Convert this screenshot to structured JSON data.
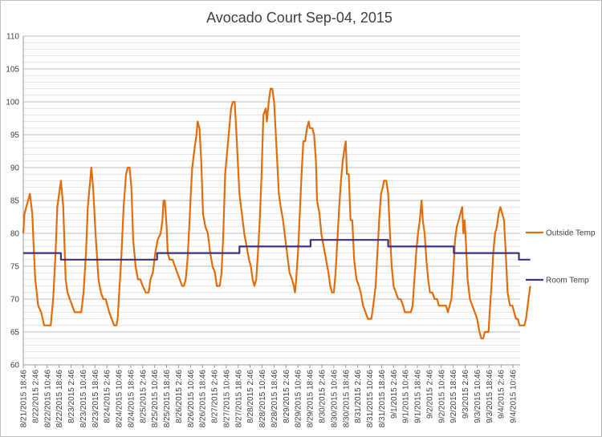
{
  "chart_data": {
    "type": "line",
    "title": "Avocado Court Sep-04, 2015",
    "xlabel": "",
    "ylabel": "",
    "ylim": [
      60,
      110
    ],
    "y_ticks": [
      60,
      65,
      70,
      75,
      80,
      85,
      90,
      95,
      100,
      105,
      110
    ],
    "grid": true,
    "legend_position": "right",
    "x_tick_labels": [
      "8/21/2015 18:46",
      "8/22/2015 2:46",
      "8/22/2015 10:46",
      "8/22/2015 18:46",
      "8/23/2015 2:46",
      "8/23/2015 10:46",
      "8/23/2015 18:46",
      "8/24/2015 2:46",
      "8/24/2015 10:46",
      "8/24/2015 18:46",
      "8/25/2015 2:46",
      "8/25/2015 10:46",
      "8/25/2015 18:46",
      "8/26/2015 2:46",
      "8/26/2015 10:46",
      "8/26/2015 18:46",
      "8/27/2015 2:46",
      "8/27/2015 10:46",
      "8/27/2015 18:46",
      "8/28/2015 2:46",
      "8/28/2015 10:46",
      "8/28/2015 18:46",
      "8/29/2015 2:46",
      "8/29/2015 10:46",
      "8/29/2015 18:46",
      "8/30/2015 2:46",
      "8/30/2015 10:46",
      "8/30/2015 18:46",
      "8/31/2015 2:46",
      "8/31/2015 10:46",
      "8/31/2015 18:46",
      "9/1/2015 2:46",
      "9/1/2015 10:46",
      "9/1/2015 18:46",
      "9/2/2015 2:46",
      "9/2/2015 10:46",
      "9/2/2015 18:46",
      "9/3/2015 2:46",
      "9/3/2015 10:46",
      "9/3/2015 18:46",
      "9/4/2015 2:46",
      "9/4/2015 10:46"
    ],
    "x_range": [
      0,
      41.6
    ],
    "series": [
      {
        "name": "Outside Temp",
        "color": "#e36c0a",
        "points": [
          [
            0,
            80
          ],
          [
            0.1,
            83
          ],
          [
            0.4,
            85
          ],
          [
            0.55,
            86
          ],
          [
            0.75,
            83
          ],
          [
            0.85,
            79
          ],
          [
            1,
            73
          ],
          [
            1.25,
            69
          ],
          [
            1.5,
            68
          ],
          [
            1.75,
            66
          ],
          [
            2,
            66
          ],
          [
            2.3,
            66
          ],
          [
            2.5,
            70
          ],
          [
            2.7,
            77
          ],
          [
            2.85,
            84
          ],
          [
            3,
            86
          ],
          [
            3.15,
            88
          ],
          [
            3.35,
            84
          ],
          [
            3.55,
            73
          ],
          [
            3.7,
            71
          ],
          [
            3.9,
            70
          ],
          [
            4.1,
            69
          ],
          [
            4.3,
            68
          ],
          [
            4.6,
            68
          ],
          [
            4.85,
            68
          ],
          [
            5.05,
            71
          ],
          [
            5.25,
            77
          ],
          [
            5.4,
            84
          ],
          [
            5.55,
            87
          ],
          [
            5.7,
            90
          ],
          [
            5.85,
            87
          ],
          [
            6.05,
            80
          ],
          [
            6.3,
            73
          ],
          [
            6.5,
            71
          ],
          [
            6.7,
            70
          ],
          [
            6.9,
            70
          ],
          [
            7.2,
            68
          ],
          [
            7.4,
            67
          ],
          [
            7.6,
            66
          ],
          [
            7.8,
            66
          ],
          [
            7.9,
            67
          ],
          [
            8,
            70
          ],
          [
            8.2,
            76
          ],
          [
            8.4,
            84
          ],
          [
            8.6,
            89
          ],
          [
            8.75,
            90
          ],
          [
            8.9,
            90
          ],
          [
            9.05,
            87
          ],
          [
            9.2,
            79
          ],
          [
            9.4,
            75
          ],
          [
            9.6,
            73
          ],
          [
            9.8,
            73
          ],
          [
            10,
            72
          ],
          [
            10.25,
            71
          ],
          [
            10.5,
            71
          ],
          [
            10.65,
            73
          ],
          [
            10.85,
            74
          ],
          [
            11.05,
            77
          ],
          [
            11.25,
            79
          ],
          [
            11.5,
            80
          ],
          [
            11.65,
            82
          ],
          [
            11.75,
            85
          ],
          [
            11.85,
            85
          ],
          [
            12,
            81
          ],
          [
            12.1,
            77
          ],
          [
            12.25,
            76
          ],
          [
            12.5,
            76
          ],
          [
            12.7,
            75
          ],
          [
            12.9,
            74
          ],
          [
            13.1,
            73
          ],
          [
            13.3,
            72
          ],
          [
            13.45,
            72
          ],
          [
            13.6,
            73
          ],
          [
            13.75,
            76
          ],
          [
            13.9,
            81
          ],
          [
            14.05,
            87
          ],
          [
            14.15,
            90
          ],
          [
            14.35,
            93
          ],
          [
            14.5,
            95
          ],
          [
            14.6,
            97
          ],
          [
            14.75,
            96
          ],
          [
            14.9,
            91
          ],
          [
            15.05,
            83
          ],
          [
            15.25,
            81
          ],
          [
            15.45,
            80
          ],
          [
            15.65,
            77
          ],
          [
            15.85,
            75
          ],
          [
            16.05,
            74
          ],
          [
            16.2,
            72
          ],
          [
            16.45,
            72
          ],
          [
            16.6,
            74
          ],
          [
            16.75,
            80
          ],
          [
            16.9,
            89
          ],
          [
            17.05,
            92
          ],
          [
            17.2,
            95
          ],
          [
            17.4,
            99
          ],
          [
            17.55,
            100
          ],
          [
            17.7,
            100
          ],
          [
            17.85,
            95
          ],
          [
            18.1,
            86
          ],
          [
            18.3,
            83
          ],
          [
            18.5,
            80
          ],
          [
            18.7,
            78
          ],
          [
            18.9,
            76
          ],
          [
            19.05,
            75
          ],
          [
            19.2,
            73
          ],
          [
            19.35,
            72
          ],
          [
            19.5,
            73
          ],
          [
            19.65,
            77
          ],
          [
            19.8,
            82
          ],
          [
            19.95,
            89
          ],
          [
            20.1,
            98
          ],
          [
            20.3,
            99
          ],
          [
            20.4,
            97
          ],
          [
            20.55,
            100
          ],
          [
            20.7,
            102
          ],
          [
            20.85,
            102
          ],
          [
            21,
            100
          ],
          [
            21.2,
            93
          ],
          [
            21.4,
            86
          ],
          [
            21.55,
            84
          ],
          [
            21.75,
            82
          ],
          [
            21.95,
            79
          ],
          [
            22.15,
            76
          ],
          [
            22.3,
            74
          ],
          [
            22.5,
            73
          ],
          [
            22.65,
            72
          ],
          [
            22.75,
            71
          ],
          [
            22.85,
            73
          ],
          [
            23,
            77
          ],
          [
            23.15,
            83
          ],
          [
            23.3,
            89
          ],
          [
            23.45,
            94
          ],
          [
            23.6,
            94
          ],
          [
            23.75,
            96
          ],
          [
            23.9,
            97
          ],
          [
            24,
            96
          ],
          [
            24.2,
            96
          ],
          [
            24.35,
            95
          ],
          [
            24.5,
            91
          ],
          [
            24.6,
            85
          ],
          [
            24.8,
            83
          ],
          [
            24.95,
            80
          ],
          [
            25.15,
            78
          ],
          [
            25.35,
            76
          ],
          [
            25.55,
            74
          ],
          [
            25.7,
            72
          ],
          [
            25.85,
            71
          ],
          [
            26,
            71
          ],
          [
            26.15,
            74
          ],
          [
            26.3,
            79
          ],
          [
            26.45,
            84
          ],
          [
            26.6,
            88
          ],
          [
            26.75,
            91
          ],
          [
            26.9,
            93
          ],
          [
            27,
            94
          ],
          [
            27.1,
            89
          ],
          [
            27.25,
            89
          ],
          [
            27.4,
            82
          ],
          [
            27.55,
            82
          ],
          [
            27.7,
            76
          ],
          [
            27.9,
            73
          ],
          [
            28.1,
            72
          ],
          [
            28.25,
            71
          ],
          [
            28.45,
            69
          ],
          [
            28.65,
            68
          ],
          [
            28.85,
            67
          ],
          [
            29.15,
            67
          ],
          [
            29.3,
            69
          ],
          [
            29.5,
            72
          ],
          [
            29.65,
            77
          ],
          [
            29.8,
            82
          ],
          [
            29.95,
            86
          ],
          [
            30.1,
            87
          ],
          [
            30.2,
            88
          ],
          [
            30.4,
            88
          ],
          [
            30.55,
            86
          ],
          [
            30.7,
            80
          ],
          [
            30.85,
            75
          ],
          [
            31,
            72
          ],
          [
            31.2,
            71
          ],
          [
            31.4,
            70
          ],
          [
            31.6,
            70
          ],
          [
            31.8,
            69
          ],
          [
            31.95,
            68
          ],
          [
            32.3,
            68
          ],
          [
            32.45,
            68
          ],
          [
            32.6,
            69
          ],
          [
            32.75,
            73
          ],
          [
            32.9,
            77
          ],
          [
            33.05,
            80
          ],
          [
            33.2,
            82
          ],
          [
            33.35,
            85
          ],
          [
            33.45,
            82
          ],
          [
            33.6,
            80
          ],
          [
            33.75,
            76
          ],
          [
            33.9,
            73
          ],
          [
            34.05,
            71
          ],
          [
            34.25,
            71
          ],
          [
            34.45,
            70
          ],
          [
            34.65,
            70
          ],
          [
            34.8,
            69
          ],
          [
            35,
            69
          ],
          [
            35.2,
            69
          ],
          [
            35.4,
            69
          ],
          [
            35.55,
            68
          ],
          [
            35.7,
            69
          ],
          [
            35.85,
            70
          ],
          [
            36,
            74
          ],
          [
            36.15,
            79
          ],
          [
            36.3,
            81
          ],
          [
            36.45,
            82
          ],
          [
            36.6,
            83
          ],
          [
            36.75,
            84
          ],
          [
            36.85,
            80
          ],
          [
            36.95,
            82
          ],
          [
            37.05,
            79
          ],
          [
            37.2,
            73
          ],
          [
            37.4,
            70
          ],
          [
            37.6,
            69
          ],
          [
            37.8,
            68
          ],
          [
            38,
            67
          ],
          [
            38.2,
            65
          ],
          [
            38.35,
            64
          ],
          [
            38.5,
            64
          ],
          [
            38.65,
            65
          ],
          [
            38.8,
            65
          ],
          [
            38.95,
            65
          ],
          [
            39.05,
            68
          ],
          [
            39.2,
            72
          ],
          [
            39.35,
            77
          ],
          [
            39.5,
            80
          ],
          [
            39.65,
            81
          ],
          [
            39.8,
            83
          ],
          [
            39.95,
            84
          ],
          [
            40.1,
            83
          ],
          [
            40.25,
            82
          ],
          [
            40.4,
            77
          ],
          [
            40.55,
            71
          ],
          [
            40.75,
            69
          ],
          [
            40.95,
            69
          ],
          [
            41.1,
            68
          ],
          [
            41.25,
            67
          ],
          [
            41.4,
            67
          ],
          [
            41.55,
            66
          ],
          [
            41.75,
            66
          ],
          [
            41.95,
            66
          ],
          [
            42.1,
            67
          ],
          [
            42.3,
            70
          ],
          [
            42.45,
            72
          ]
        ]
      },
      {
        "name": "Room Temp",
        "color": "#403080",
        "points": [
          [
            0,
            77
          ],
          [
            3.15,
            77
          ],
          [
            3.15,
            76
          ],
          [
            11.2,
            76
          ],
          [
            11.2,
            77
          ],
          [
            18.1,
            77
          ],
          [
            18.1,
            78
          ],
          [
            24.05,
            78
          ],
          [
            24.05,
            79
          ],
          [
            30.55,
            79
          ],
          [
            30.55,
            78
          ],
          [
            36.05,
            78
          ],
          [
            36.05,
            77
          ],
          [
            41.5,
            77
          ],
          [
            41.5,
            76
          ],
          [
            42.45,
            76
          ]
        ]
      }
    ]
  }
}
